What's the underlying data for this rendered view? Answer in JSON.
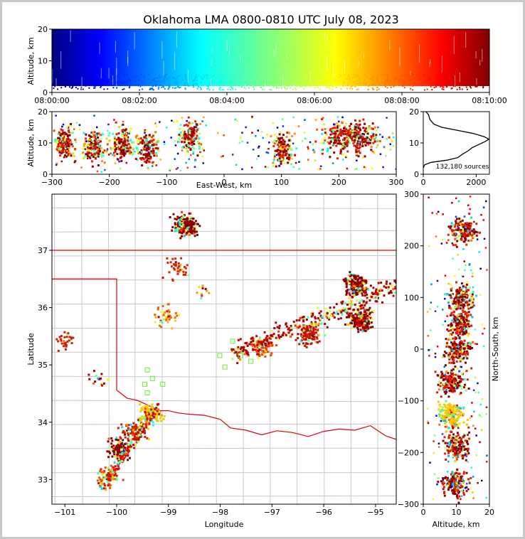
{
  "chart_data": [
    {
      "type": "scatter",
      "panel": "time-altitude",
      "title": "Oklahoma LMA 0800-0810 UTC July 08, 2023",
      "xlabel": "",
      "ylabel": "Altitude, km",
      "x_range": [
        "08:00:00",
        "08:10:00"
      ],
      "ylim": [
        0,
        20
      ],
      "xticks": [
        "08:00:00",
        "08:02:00",
        "08:04:00",
        "08:06:00",
        "08:08:00",
        "08:10:00"
      ],
      "yticks": [
        "0",
        "10",
        "20"
      ],
      "color_scale": "jet colormap by time (dark blue = 08:00, dark red = 08:10)",
      "altitude_band_km": [
        2,
        20
      ]
    },
    {
      "type": "scatter",
      "panel": "east-west-altitude",
      "xlabel": "East-West, km",
      "ylabel": "Altitude, km",
      "xlim": [
        -300,
        300
      ],
      "ylim": [
        0,
        20
      ],
      "xticks": [
        "−300",
        "−200",
        "−100",
        "0",
        "100",
        "200",
        "300"
      ],
      "yticks": [
        "0",
        "10",
        "20"
      ],
      "clusters": [
        {
          "x": -280,
          "alt": 10
        },
        {
          "x": -230,
          "alt": 9
        },
        {
          "x": -180,
          "alt": 10
        },
        {
          "x": -135,
          "alt": 9
        },
        {
          "x": -60,
          "alt": 12
        },
        {
          "x": 100,
          "alt": 8
        },
        {
          "x": 220,
          "alt": 12
        }
      ]
    },
    {
      "type": "line",
      "panel": "altitude-histogram",
      "annotation": "132,180 sources",
      "xlim": [
        0,
        2500
      ],
      "ylim": [
        0,
        20
      ],
      "xticks": [
        "0",
        "2000"
      ],
      "yticks": [
        "0",
        "10",
        "20"
      ],
      "profile": [
        {
          "count": 0,
          "alt": 2.0
        },
        {
          "count": 50,
          "alt": 3.0
        },
        {
          "count": 300,
          "alt": 3.8
        },
        {
          "count": 900,
          "alt": 4.5
        },
        {
          "count": 1300,
          "alt": 5.3
        },
        {
          "count": 1500,
          "alt": 6.5
        },
        {
          "count": 1700,
          "alt": 7.5
        },
        {
          "count": 1850,
          "alt": 8.5
        },
        {
          "count": 2100,
          "alt": 9.5
        },
        {
          "count": 2350,
          "alt": 10.5
        },
        {
          "count": 2480,
          "alt": 11.2
        },
        {
          "count": 2300,
          "alt": 12.0
        },
        {
          "count": 1900,
          "alt": 13.0
        },
        {
          "count": 1300,
          "alt": 14.0
        },
        {
          "count": 700,
          "alt": 15.0
        },
        {
          "count": 400,
          "alt": 16.0
        },
        {
          "count": 250,
          "alt": 17.5
        },
        {
          "count": 200,
          "alt": 19.0
        },
        {
          "count": 100,
          "alt": 20.0
        }
      ]
    },
    {
      "type": "scatter",
      "panel": "plan-view",
      "xlabel": "Longitude",
      "ylabel": "Latitude",
      "xlim": [
        -101.25,
        -94.6
      ],
      "ylim": [
        32.57,
        37.98
      ],
      "xticks": [
        "−101",
        "−100",
        "−99",
        "−98",
        "−97",
        "−96",
        "−95"
      ],
      "yticks": [
        "33",
        "34",
        "35",
        "36",
        "37"
      ],
      "clusters": [
        {
          "lon": -98.7,
          "lat": 37.45,
          "color": "#8b0000",
          "n": 180
        },
        {
          "lon": -98.85,
          "lat": 36.7,
          "color": "#dd2200",
          "n": 40
        },
        {
          "lon": -99.05,
          "lat": 35.9,
          "color": "#ee6600",
          "n": 40
        },
        {
          "lon": -95.4,
          "lat": 36.4,
          "color": "#8b0000",
          "n": 200
        },
        {
          "lon": -95.3,
          "lat": 35.8,
          "color": "#8b0000",
          "n": 200
        },
        {
          "lon": -96.3,
          "lat": 35.55,
          "color": "#cc1100",
          "n": 120
        },
        {
          "lon": -97.2,
          "lat": 35.35,
          "color": "#ee4400",
          "n": 80
        },
        {
          "lon": -99.35,
          "lat": 34.15,
          "color": "#f5c800",
          "n": 100
        },
        {
          "lon": -99.7,
          "lat": 33.85,
          "color": "#cc2200",
          "n": 80
        },
        {
          "lon": -99.95,
          "lat": 33.55,
          "color": "#8b0000",
          "n": 100
        },
        {
          "lon": -100.2,
          "lat": 33.05,
          "color": "#ee5500",
          "n": 50
        },
        {
          "lon": -101.05,
          "lat": 35.45,
          "color": "#cc2200",
          "n": 30
        },
        {
          "lon": -100.4,
          "lat": 34.72,
          "color": "#aa0000",
          "n": 15
        },
        {
          "lon": -98.3,
          "lat": 36.3,
          "color": "#ff9900",
          "n": 10
        }
      ]
    },
    {
      "type": "scatter",
      "panel": "altitude-north-south",
      "xlabel": "Altitude, km",
      "ylabel": "North-South, km",
      "xlim": [
        0,
        20
      ],
      "ylim": [
        -300,
        300
      ],
      "xticks": [
        "0",
        "10",
        "20"
      ],
      "yticks": [
        "−300",
        "−200",
        "−100",
        "0",
        "100",
        "200",
        "300"
      ],
      "clusters": [
        {
          "alt": 12,
          "y": 230
        },
        {
          "alt": 11,
          "y": 100
        },
        {
          "alt": 11,
          "y": 50
        },
        {
          "alt": 10,
          "y": 0
        },
        {
          "alt": 8,
          "y": -60
        },
        {
          "alt": 8,
          "y": -125
        },
        {
          "alt": 10,
          "y": -185
        },
        {
          "alt": 9,
          "y": -260
        }
      ]
    }
  ]
}
